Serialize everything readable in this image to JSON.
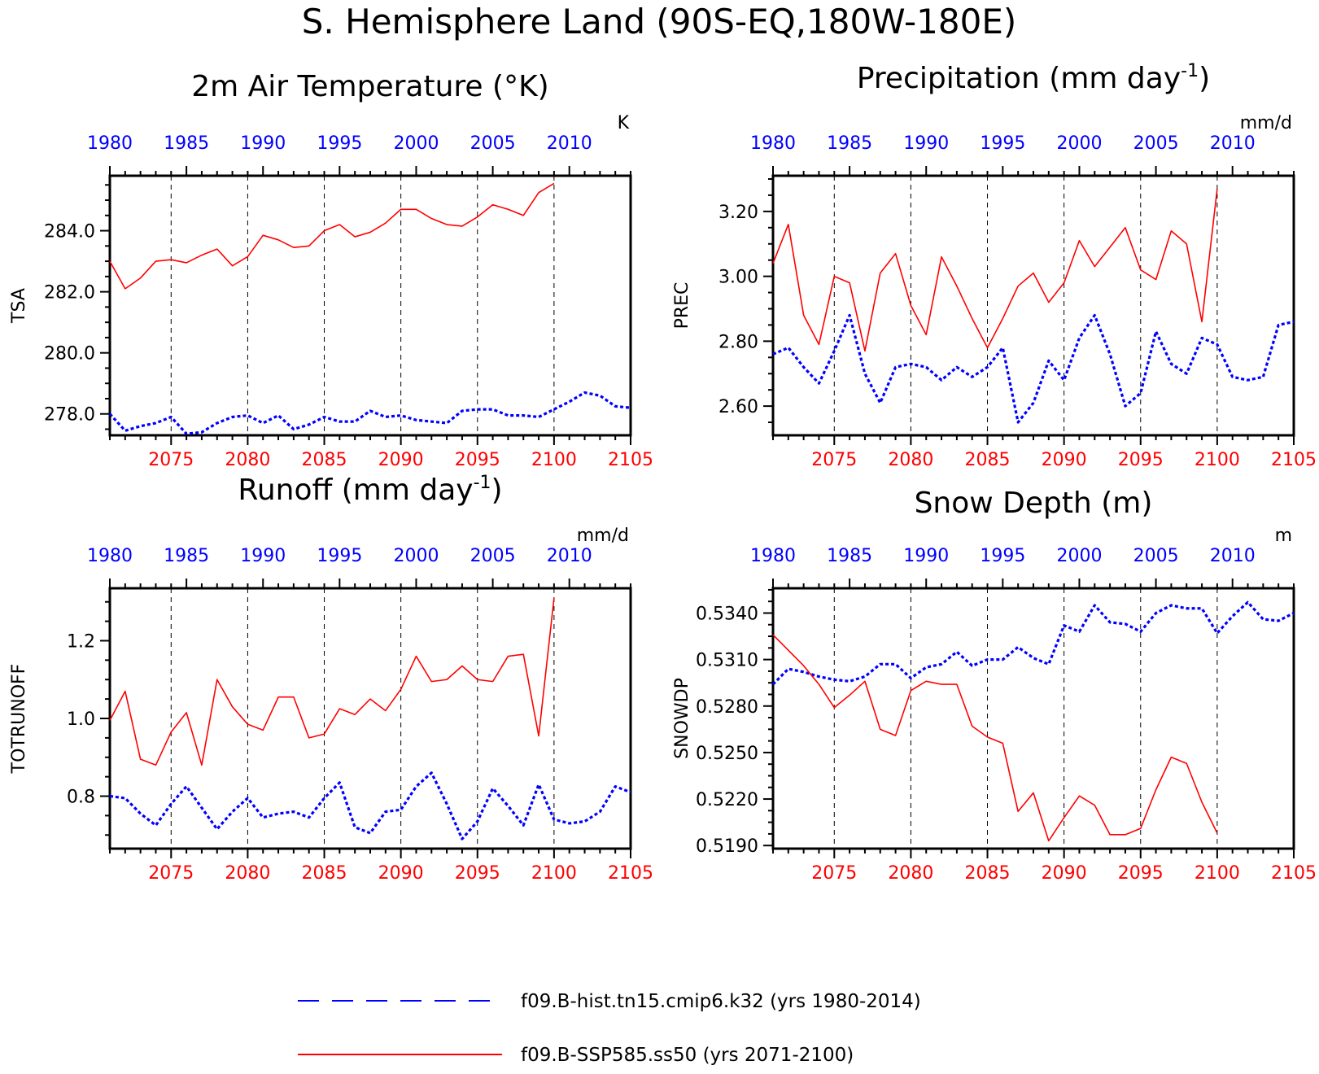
{
  "figure_title": "S. Hemisphere Land (90S-EQ,180W-180E)",
  "colors": {
    "historical": "#0000ff",
    "future": "#ff0000",
    "axis": "#000000"
  },
  "legend": [
    {
      "name": "f09.B-hist.tn15.cmip6.k32 (yrs 1980-2014)",
      "style": "dashed",
      "color": "#0000ff"
    },
    {
      "name": "f09.B-SSP585.ss50 (yrs 2071-2100)",
      "style": "solid",
      "color": "#ff0000"
    }
  ],
  "chart_data": [
    {
      "type": "line",
      "title": "2m Air Temperature (°K)",
      "ylabel": "TSA",
      "units": "K",
      "ylim": [
        277.3,
        285.8
      ],
      "yticks": [
        278.0,
        280.0,
        282.0,
        284.0
      ],
      "ytick_labels": [
        "278.0",
        "280.0",
        "282.0",
        "284.0"
      ],
      "top_xlim": [
        1980,
        2014
      ],
      "top_ticks": [
        1980,
        1985,
        1990,
        1995,
        2000,
        2005,
        2010
      ],
      "bottom_xlim": [
        2071,
        2105
      ],
      "bottom_ticks": [
        2075,
        2080,
        2085,
        2090,
        2095,
        2100,
        2105
      ],
      "series": [
        {
          "name": "f09.B-hist.tn15.cmip6.k32 (yrs 1980-2014)",
          "axis": "top",
          "x_start": 1980,
          "values": [
            278.0,
            277.45,
            277.6,
            277.7,
            277.9,
            277.35,
            277.4,
            277.7,
            277.9,
            277.95,
            277.7,
            277.95,
            277.5,
            277.65,
            277.9,
            277.75,
            277.75,
            278.1,
            277.9,
            277.95,
            277.8,
            277.75,
            277.7,
            278.1,
            278.15,
            278.15,
            277.95,
            277.95,
            277.9,
            278.15,
            278.4,
            278.7,
            278.6,
            278.25,
            278.2
          ]
        },
        {
          "name": "f09.B-SSP585.ss50 (yrs 2071-2100)",
          "axis": "bottom",
          "x_start": 2071,
          "values": [
            283.0,
            282.1,
            282.45,
            283.0,
            283.05,
            282.95,
            283.2,
            283.4,
            282.85,
            283.15,
            283.85,
            283.7,
            283.45,
            283.5,
            284.0,
            284.2,
            283.8,
            283.95,
            284.25,
            284.7,
            284.7,
            284.4,
            284.2,
            284.15,
            284.45,
            284.85,
            284.7,
            284.5,
            285.25,
            285.55
          ]
        }
      ]
    },
    {
      "type": "line",
      "title": "Precipitation (mm day",
      "title_sup": "-1",
      "title_end": ")",
      "ylabel": "PREC",
      "units": "mm/d",
      "ylim": [
        2.51,
        3.31
      ],
      "yticks": [
        2.6,
        2.8,
        3.0,
        3.2
      ],
      "ytick_labels": [
        "2.60",
        "2.80",
        "3.00",
        "3.20"
      ],
      "top_xlim": [
        1980,
        2014
      ],
      "top_ticks": [
        1980,
        1985,
        1990,
        1995,
        2000,
        2005,
        2010
      ],
      "bottom_xlim": [
        2071,
        2105
      ],
      "bottom_ticks": [
        2075,
        2080,
        2085,
        2090,
        2095,
        2100,
        2105
      ],
      "series": [
        {
          "name": "f09.B-hist.tn15.cmip6.k32 (yrs 1980-2014)",
          "axis": "top",
          "x_start": 1980,
          "values": [
            2.76,
            2.78,
            2.72,
            2.67,
            2.77,
            2.88,
            2.7,
            2.61,
            2.72,
            2.73,
            2.72,
            2.68,
            2.72,
            2.69,
            2.72,
            2.78,
            2.55,
            2.61,
            2.74,
            2.68,
            2.81,
            2.88,
            2.76,
            2.6,
            2.64,
            2.83,
            2.73,
            2.7,
            2.81,
            2.79,
            2.69,
            2.68,
            2.69,
            2.85,
            2.86
          ]
        },
        {
          "name": "f09.B-SSP585.ss50 (yrs 2071-2100)",
          "axis": "bottom",
          "x_start": 2071,
          "values": [
            3.04,
            3.16,
            2.88,
            2.79,
            3.0,
            2.98,
            2.77,
            3.01,
            3.07,
            2.91,
            2.82,
            3.06,
            2.97,
            2.87,
            2.78,
            2.87,
            2.97,
            3.01,
            2.92,
            2.98,
            3.11,
            3.03,
            3.09,
            3.15,
            3.02,
            2.99,
            3.14,
            3.1,
            2.86,
            3.27
          ]
        }
      ]
    },
    {
      "type": "line",
      "title": "Runoff (mm day",
      "title_sup": "-1",
      "title_end": ")",
      "ylabel": "TOTRUNOFF",
      "units": "mm/d",
      "ylim": [
        0.665,
        1.335
      ],
      "yticks": [
        0.8,
        1.0,
        1.2
      ],
      "ytick_labels": [
        "0.8",
        "1.0",
        "1.2"
      ],
      "top_xlim": [
        1980,
        2014
      ],
      "top_ticks": [
        1980,
        1985,
        1990,
        1995,
        2000,
        2005,
        2010
      ],
      "bottom_xlim": [
        2071,
        2105
      ],
      "bottom_ticks": [
        2075,
        2080,
        2085,
        2090,
        2095,
        2100,
        2105
      ],
      "series": [
        {
          "name": "f09.B-hist.tn15.cmip6.k32 (yrs 1980-2014)",
          "axis": "top",
          "x_start": 1980,
          "values": [
            0.8,
            0.795,
            0.755,
            0.725,
            0.78,
            0.825,
            0.77,
            0.715,
            0.76,
            0.795,
            0.745,
            0.755,
            0.76,
            0.745,
            0.795,
            0.835,
            0.72,
            0.705,
            0.76,
            0.765,
            0.825,
            0.86,
            0.78,
            0.69,
            0.735,
            0.82,
            0.775,
            0.725,
            0.83,
            0.74,
            0.73,
            0.735,
            0.76,
            0.825,
            0.81
          ]
        },
        {
          "name": "f09.B-SSP585.ss50 (yrs 2071-2100)",
          "axis": "bottom",
          "x_start": 2071,
          "values": [
            0.995,
            1.07,
            0.895,
            0.88,
            0.965,
            1.015,
            0.88,
            1.1,
            1.03,
            0.985,
            0.97,
            1.055,
            1.055,
            0.95,
            0.96,
            1.025,
            1.01,
            1.05,
            1.02,
            1.075,
            1.16,
            1.095,
            1.1,
            1.135,
            1.1,
            1.095,
            1.16,
            1.165,
            0.955,
            1.31
          ]
        }
      ]
    },
    {
      "type": "line",
      "title": "Snow Depth (m)",
      "ylabel": "SNOWDP",
      "units": "m",
      "ylim": [
        0.5188,
        0.5356
      ],
      "yticks": [
        0.519,
        0.522,
        0.525,
        0.528,
        0.531,
        0.534
      ],
      "ytick_labels": [
        "0.5190",
        "0.5220",
        "0.5250",
        "0.5280",
        "0.5310",
        "0.5340"
      ],
      "top_xlim": [
        1980,
        2014
      ],
      "top_ticks": [
        1980,
        1985,
        1990,
        1995,
        2000,
        2005,
        2010
      ],
      "bottom_xlim": [
        2071,
        2105
      ],
      "bottom_ticks": [
        2075,
        2080,
        2085,
        2090,
        2095,
        2100,
        2105
      ],
      "series": [
        {
          "name": "f09.B-hist.tn15.cmip6.k32 (yrs 1980-2014)",
          "axis": "top",
          "x_start": 1980,
          "values": [
            0.5294,
            0.5304,
            0.5302,
            0.5299,
            0.5297,
            0.5296,
            0.5299,
            0.5307,
            0.5307,
            0.5298,
            0.5305,
            0.5307,
            0.5315,
            0.5306,
            0.531,
            0.531,
            0.5318,
            0.5311,
            0.5307,
            0.5332,
            0.5328,
            0.5345,
            0.5334,
            0.5333,
            0.5328,
            0.534,
            0.5345,
            0.5343,
            0.5343,
            0.5327,
            0.5338,
            0.5347,
            0.5336,
            0.5335,
            0.534
          ]
        },
        {
          "name": "f09.B-SSP585.ss50 (yrs 2071-2100)",
          "axis": "bottom",
          "x_start": 2071,
          "values": [
            0.5326,
            0.5316,
            0.5306,
            0.5294,
            0.5279,
            0.5287,
            0.5296,
            0.5265,
            0.5261,
            0.529,
            0.5296,
            0.5294,
            0.5294,
            0.5267,
            0.526,
            0.5256,
            0.5212,
            0.5224,
            0.5193,
            0.5208,
            0.5222,
            0.5216,
            0.5197,
            0.5197,
            0.5201,
            0.5226,
            0.5247,
            0.5243,
            0.5218,
            0.5198
          ]
        }
      ]
    }
  ]
}
